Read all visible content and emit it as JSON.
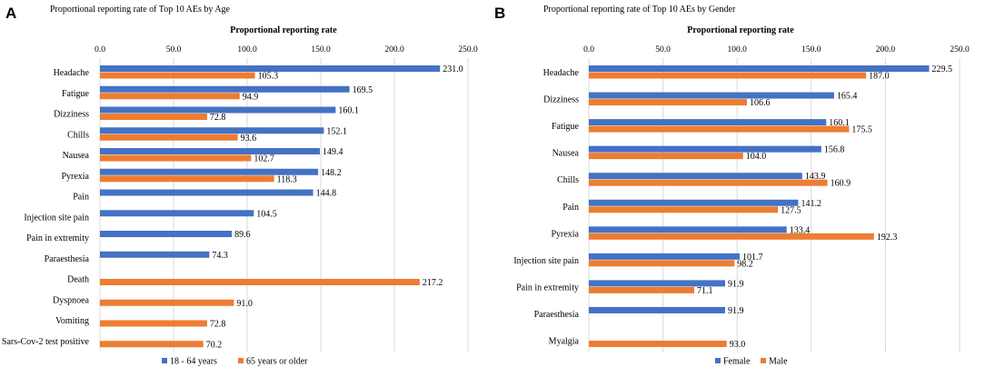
{
  "chart_data": [
    {
      "panel": "A",
      "type": "bar",
      "orientation": "horizontal",
      "title": "Proportional reporting rate of Top 10 AEs by Age",
      "xlabel": "Proportional reporting rate",
      "xlim": [
        0,
        250
      ],
      "ticks": [
        "0.0",
        "50.0",
        "100.0",
        "150.0",
        "200.0",
        "250.0"
      ],
      "tick_values": [
        0,
        50,
        100,
        150,
        200,
        250
      ],
      "categories": [
        "Headache",
        "Fatigue",
        "Dizziness",
        "Chills",
        "Nausea",
        "Pyrexia",
        "Pain",
        "Injection site pain",
        "Pain in extremity",
        "Paraesthesia",
        "Death",
        "Dyspnoea",
        "Vomiting",
        "Sars-Cov-2 test positive"
      ],
      "series": [
        {
          "name": "18 - 64 years",
          "color": "#4472C4",
          "values": [
            231.0,
            169.5,
            160.1,
            152.1,
            149.4,
            148.2,
            144.8,
            104.5,
            89.6,
            74.3,
            null,
            null,
            null,
            null
          ],
          "labels": [
            "231.0",
            "169.5",
            "160.1",
            "152.1",
            "149.4",
            "148.2",
            "144.8",
            "104.5",
            "89.6",
            "74.3",
            null,
            null,
            null,
            null
          ]
        },
        {
          "name": "65 years or older",
          "color": "#ED7D31",
          "values": [
            105.3,
            94.9,
            72.8,
            93.6,
            102.7,
            118.3,
            null,
            null,
            null,
            null,
            217.2,
            91.0,
            72.8,
            70.2
          ],
          "labels": [
            "105.3",
            "94.9",
            "72.8",
            "93.6",
            "102.7",
            "118.3",
            null,
            null,
            null,
            null,
            "217.2",
            "91.0",
            "72.8",
            "70.2"
          ]
        }
      ],
      "legend": "bottom"
    },
    {
      "panel": "B",
      "type": "bar",
      "orientation": "horizontal",
      "title": "Proportional reporting rate of Top 10 AEs by Gender",
      "xlabel": "Proportional reporting rate",
      "xlim": [
        0,
        250
      ],
      "ticks": [
        "0.0",
        "50.0",
        "100.0",
        "150.0",
        "200.0",
        "250.0"
      ],
      "tick_values": [
        0,
        50,
        100,
        150,
        200,
        250
      ],
      "categories": [
        "Headache",
        "Dizziness",
        "Fatigue",
        "Nausea",
        "Chills",
        "Pain",
        "Pyrexia",
        "Injection site pain",
        "Pain in extremity",
        "Paraesthesia",
        "Myalgia"
      ],
      "series": [
        {
          "name": "Female",
          "color": "#4472C4",
          "values": [
            229.5,
            165.4,
            160.1,
            156.8,
            143.9,
            141.2,
            133.4,
            101.7,
            91.9,
            91.9,
            null
          ],
          "labels": [
            "229.5",
            "165.4",
            "160.1",
            "156.8",
            "143.9",
            "141.2",
            "133.4",
            "101.7",
            "91.9",
            "91.9",
            null
          ]
        },
        {
          "name": "Male",
          "color": "#ED7D31",
          "values": [
            187.0,
            106.6,
            175.5,
            104.0,
            160.9,
            127.5,
            192.3,
            98.2,
            71.1,
            null,
            93.0
          ],
          "labels": [
            "187.0",
            "106.6",
            "175.5",
            "104.0",
            "160.9",
            "127.5",
            "192.3",
            "98.2",
            "71.1",
            null,
            "93.0"
          ]
        }
      ],
      "legend": "bottom"
    }
  ]
}
